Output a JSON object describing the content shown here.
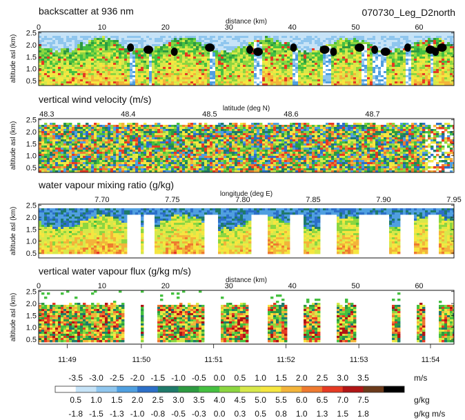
{
  "header_right": "070730_Leg_D2north",
  "panels": [
    {
      "title": "backscatter at 936 nm",
      "kind": "backscatter",
      "top_axis": {
        "label": "distance (km)",
        "ticks": [
          {
            "v": 0,
            "t": "0"
          },
          {
            "v": 10,
            "t": "10"
          },
          {
            "v": 20,
            "t": "20"
          },
          {
            "v": 30,
            "t": "30"
          },
          {
            "v": 40,
            "t": "40"
          },
          {
            "v": 50,
            "t": "50"
          },
          {
            "v": 60,
            "t": "60"
          }
        ],
        "min": 0,
        "max": 65.5
      }
    },
    {
      "title": "vertical wind velocity (m/s)",
      "kind": "wind",
      "top_axis": {
        "label": "latitude (deg N)",
        "ticks": [
          {
            "v": 48.3,
            "t": "48.3"
          },
          {
            "v": 48.4,
            "t": "48.4"
          },
          {
            "v": 48.5,
            "t": "48.5"
          },
          {
            "v": 48.6,
            "t": "48.6"
          },
          {
            "v": 48.7,
            "t": "48.7"
          }
        ],
        "min": 48.29,
        "max": 48.8
      }
    },
    {
      "title": "water vapour mixing ratio (g/kg)",
      "kind": "mixing",
      "top_axis": {
        "label": "longitude (deg E)",
        "ticks": [
          {
            "v": 7.7,
            "t": "7.70"
          },
          {
            "v": 7.75,
            "t": "7.75"
          },
          {
            "v": 7.8,
            "t": "7.80"
          },
          {
            "v": 7.85,
            "t": "7.85"
          },
          {
            "v": 7.9,
            "t": "7.90"
          },
          {
            "v": 7.95,
            "t": "7.95"
          }
        ],
        "min": 7.655,
        "max": 7.95
      }
    },
    {
      "title": "vertical water vapour flux (g/kg m/s)",
      "kind": "flux",
      "top_axis": {
        "label": "distance (km)",
        "ticks": [
          {
            "v": 0,
            "t": "0"
          },
          {
            "v": 10,
            "t": "10"
          },
          {
            "v": 20,
            "t": "20"
          },
          {
            "v": 30,
            "t": "30"
          },
          {
            "v": 40,
            "t": "40"
          },
          {
            "v": 50,
            "t": "50"
          },
          {
            "v": 60,
            "t": "60"
          }
        ],
        "min": 0,
        "max": 65.5
      }
    }
  ],
  "y_axis": {
    "label": "altitude asl (km)",
    "ticks": [
      "0.5",
      "1.0",
      "1.5",
      "2.0",
      "2.5"
    ],
    "min": 0.3,
    "max": 2.55
  },
  "time_axis": {
    "ticks": [
      "11:49",
      "11:50",
      "11:51",
      "11:52",
      "11:53",
      "11:54"
    ],
    "positions_km": [
      4.5,
      16.2,
      27.6,
      39.0,
      50.5,
      61.8
    ]
  },
  "colorbar": {
    "colors": [
      "#ffffff",
      "#c6e3f7",
      "#8fc6ee",
      "#4f9fe0",
      "#2c6fc8",
      "#1f7a6a",
      "#2d9a40",
      "#45c040",
      "#8cd640",
      "#d7e84a",
      "#f5e640",
      "#f3b43a",
      "#ee7a30",
      "#e53a23",
      "#b01515",
      "#6b3a1a",
      "#000000"
    ],
    "rows": [
      {
        "unit": "m/s",
        "labels": [
          "-3.5",
          "-3.0",
          "-2.5",
          "-2.0",
          "-1.5",
          "-1.0",
          "-0.5",
          "0.0",
          "0.5",
          "1.0",
          "1.5",
          "2.0",
          "2.5",
          "3.0",
          "3.5"
        ]
      },
      {
        "unit": "g/kg",
        "labels": [
          "0.5",
          "1.0",
          "1.5",
          "2.0",
          "2.5",
          "3.0",
          "3.5",
          "4.0",
          "4.5",
          "5.0",
          "5.5",
          "6.0",
          "6.5",
          "7.0",
          "7.5"
        ]
      },
      {
        "unit": "g/kg m/s",
        "labels": [
          "-1.8",
          "-1.5",
          "-1.3",
          "-1.0",
          "-0.8",
          "-0.5",
          "-0.3",
          "0.0",
          "0.3",
          "0.5",
          "0.8",
          "1.0",
          "1.3",
          "1.5",
          "1.8"
        ]
      }
    ]
  },
  "chart_data": [
    {
      "type": "heatmap",
      "title": "backscatter at 936 nm",
      "xlabel": "distance (km)",
      "ylabel": "altitude asl (km)",
      "xlim": [
        0,
        65.5
      ],
      "ylim": [
        0.3,
        2.55
      ],
      "x_ticks": [
        0,
        10,
        20,
        30,
        40,
        50,
        60
      ],
      "y_ticks": [
        0.5,
        1.0,
        1.5,
        2.0,
        2.5
      ]
    },
    {
      "type": "heatmap",
      "title": "vertical wind velocity (m/s)",
      "xlabel": "latitude (deg N)",
      "ylabel": "altitude asl (km)",
      "x_ticks": [
        48.3,
        48.4,
        48.5,
        48.6,
        48.7
      ],
      "y_ticks": [
        0.5,
        1.0,
        1.5,
        2.0,
        2.5
      ],
      "colorscale": [
        -3.5,
        3.5
      ]
    },
    {
      "type": "heatmap",
      "title": "water vapour mixing ratio (g/kg)",
      "xlabel": "longitude (deg E)",
      "ylabel": "altitude asl (km)",
      "x_ticks": [
        7.7,
        7.75,
        7.8,
        7.85,
        7.9,
        7.95
      ],
      "y_ticks": [
        0.5,
        1.0,
        1.5,
        2.0,
        2.5
      ],
      "colorscale": [
        0.5,
        7.5
      ]
    },
    {
      "type": "heatmap",
      "title": "vertical water vapour flux (g/kg m/s)",
      "xlabel": "distance (km)",
      "ylabel": "altitude asl (km)",
      "xlim": [
        0,
        65.5
      ],
      "x_ticks": [
        0,
        10,
        20,
        30,
        40,
        50,
        60
      ],
      "y_ticks": [
        0.5,
        1.0,
        1.5,
        2.0,
        2.5
      ],
      "time_ticks": [
        "11:49",
        "11:50",
        "11:51",
        "11:52",
        "11:53",
        "11:54"
      ],
      "colorscale": [
        -1.8,
        1.8
      ]
    }
  ]
}
